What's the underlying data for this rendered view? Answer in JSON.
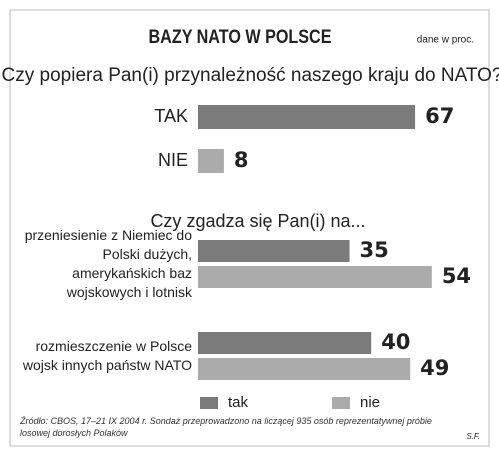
{
  "header": {
    "title": "BAZY NATO W POLSCE",
    "unit_note": "dane w proc."
  },
  "chart_data": [
    {
      "type": "bar",
      "orientation": "horizontal",
      "title": "Czy popiera Pan(i) przynależność naszego kraju do NATO?",
      "categories": [
        "TAK",
        "NIE"
      ],
      "values": [
        67,
        8
      ],
      "colors": [
        "#7b7b7b",
        "#ababab"
      ]
    },
    {
      "type": "grouped_bar",
      "orientation": "horizontal",
      "title": "Czy zgadza się Pan(i) na...",
      "categories": [
        "przeniesienie z Niemiec do Polski dużych, amerykańskich baz wojskowych i lotnisk",
        "rozmieszczenie w Polsce wojsk innych państw NATO"
      ],
      "series": [
        {
          "name": "tak",
          "color": "#7b7b7b",
          "values": [
            35,
            40
          ]
        },
        {
          "name": "nie",
          "color": "#ababab",
          "values": [
            54,
            49
          ]
        }
      ],
      "legend": "bottom"
    }
  ],
  "footer": {
    "source": "Źródło: CBOS, 17–21 IX 2004 r. Sondaż przeprowadzono na liczącej 935 osób reprezentatywnej próbie losowej dorosłych Polaków",
    "signature": "S.F."
  }
}
